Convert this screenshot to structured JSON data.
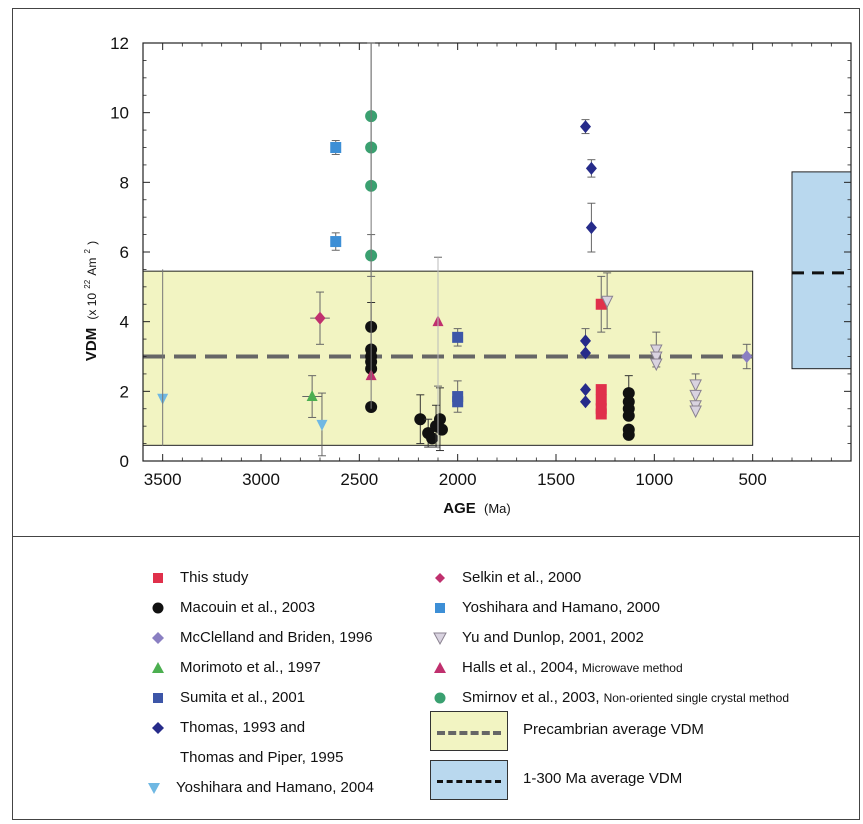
{
  "chart_data": {
    "type": "scatter",
    "xlabel": "AGE",
    "xlabel_unit": "(Ma)",
    "ylabel": "VDM",
    "ylabel_unit": "(x 10",
    "ylabel_exp": "22",
    "ylabel_unit_end": " Am",
    "ylabel_unit_sq": "2",
    "ylabel_close": ")",
    "xlim": [
      3600,
      0
    ],
    "ylim": [
      0,
      12
    ],
    "x_reversed": true,
    "xticks": [
      3500,
      3000,
      2500,
      2000,
      1500,
      1000,
      500
    ],
    "yticks": [
      0,
      2,
      4,
      6,
      8,
      10,
      12
    ],
    "grid": false,
    "reference_bands": [
      {
        "name": "Precambrian average VDM",
        "x_range": [
          3600,
          500
        ],
        "y_range": [
          0.45,
          5.45
        ],
        "mean": 3.0,
        "fill": "#f2f4c2",
        "line_color": "#666666"
      },
      {
        "name": "1-300 Ma average VDM",
        "x_range": [
          300,
          0
        ],
        "y_range": [
          2.65,
          8.3
        ],
        "mean": 5.4,
        "fill": "#b9d8ee",
        "line_color": "#111111"
      }
    ],
    "series": [
      {
        "name": "This study",
        "marker": "square",
        "color": "#e0304b",
        "points": [
          {
            "x": 1270,
            "y": 4.5,
            "yerr": 0.8
          },
          {
            "x": 1270,
            "y": 2.05
          },
          {
            "x": 1270,
            "y": 1.75
          },
          {
            "x": 1270,
            "y": 1.5
          },
          {
            "x": 1270,
            "y": 1.35
          }
        ]
      },
      {
        "name": "Macouin et al., 2003",
        "marker": "circle",
        "color": "#111111",
        "points": [
          {
            "x": 2440,
            "y": 3.85,
            "yerr": 0.7
          },
          {
            "x": 2440,
            "y": 3.2
          },
          {
            "x": 2440,
            "y": 3.0
          },
          {
            "x": 2440,
            "y": 2.85
          },
          {
            "x": 2440,
            "y": 2.65
          },
          {
            "x": 2440,
            "y": 1.55
          },
          {
            "x": 2190,
            "y": 1.2,
            "yerr": 0.7
          },
          {
            "x": 2150,
            "y": 0.8,
            "yerr": 0.4
          },
          {
            "x": 2130,
            "y": 0.65
          },
          {
            "x": 2110,
            "y": 1.0,
            "yerr": 0.6
          },
          {
            "x": 2090,
            "y": 1.2,
            "yerr": 0.9
          },
          {
            "x": 2080,
            "y": 0.9
          },
          {
            "x": 1130,
            "y": 1.95,
            "yerr": 0.5
          },
          {
            "x": 1130,
            "y": 1.7
          },
          {
            "x": 1130,
            "y": 1.5
          },
          {
            "x": 1130,
            "y": 1.3
          },
          {
            "x": 1130,
            "y": 0.9
          },
          {
            "x": 1130,
            "y": 0.75
          }
        ]
      },
      {
        "name": "McClelland and Briden, 1996",
        "marker": "diamond",
        "color": "#8a7fc2",
        "points": [
          {
            "x": 530,
            "y": 3.0,
            "yerr": 0.35
          }
        ]
      },
      {
        "name": "Morimoto et al., 1997",
        "marker": "triangle-up",
        "color": "#4caf50",
        "points": [
          {
            "x": 2740,
            "y": 1.85,
            "yerr": 0.6,
            "xerr": 50
          }
        ]
      },
      {
        "name": "Sumita et al., 2001",
        "marker": "square",
        "color": "#3d56a8",
        "points": [
          {
            "x": 2000,
            "y": 3.55,
            "yerr": 0.25
          },
          {
            "x": 2000,
            "y": 1.85,
            "yerr": 0.45
          },
          {
            "x": 2000,
            "y": 1.7
          }
        ]
      },
      {
        "name": "Thomas, 1993 and",
        "name_line2": "Thomas and Piper, 1995",
        "marker": "diamond",
        "color": "#262b8a",
        "points": [
          {
            "x": 1350,
            "y": 9.6,
            "yerr": 0.2
          },
          {
            "x": 1320,
            "y": 8.4,
            "yerr": 0.25
          },
          {
            "x": 1320,
            "y": 6.7,
            "yerr": 0.7
          },
          {
            "x": 1350,
            "y": 3.45,
            "yerr": 0.35
          },
          {
            "x": 1350,
            "y": 3.1
          },
          {
            "x": 1350,
            "y": 2.05
          },
          {
            "x": 1350,
            "y": 1.7
          }
        ]
      },
      {
        "name": "Yoshihara and Hamano, 2004",
        "marker": "triangle-down",
        "color": "#6fb8e3",
        "points": [
          {
            "x": 3500,
            "y": 1.8
          },
          {
            "x": 2690,
            "y": 1.05,
            "yerr": 0.9
          }
        ]
      },
      {
        "name": "Selkin et al., 2000",
        "marker": "diamond",
        "color": "#c0306e",
        "points": [
          {
            "x": 2700,
            "y": 4.1,
            "yerr": 0.75,
            "xerr": 50
          }
        ]
      },
      {
        "name": "Yoshihara and Hamano, 2000",
        "marker": "square",
        "color": "#3d8fd6",
        "points": [
          {
            "x": 2620,
            "y": 9.0,
            "yerr": 0.2
          },
          {
            "x": 2620,
            "y": 6.3,
            "yerr": 0.25
          }
        ]
      },
      {
        "name": "Yu and Dunlop, 2001, 2002",
        "marker": "triangle-down",
        "color": "#a8a0b0",
        "points": [
          {
            "x": 1240,
            "y": 4.6,
            "yerr": 0.8
          },
          {
            "x": 990,
            "y": 3.2,
            "yerr": 0.5
          },
          {
            "x": 990,
            "y": 3.0
          },
          {
            "x": 990,
            "y": 2.8
          },
          {
            "x": 790,
            "y": 2.2,
            "yerr": 0.3
          },
          {
            "x": 790,
            "y": 1.9
          },
          {
            "x": 790,
            "y": 1.6
          },
          {
            "x": 790,
            "y": 1.45
          }
        ]
      },
      {
        "name": "Halls et al., 2004,",
        "note": "Microwave method",
        "marker": "triangle-up",
        "color": "#c0306e",
        "points": [
          {
            "x": 2440,
            "y": 2.45
          },
          {
            "x": 2100,
            "y": 4.0,
            "yerr": 1.85
          }
        ]
      },
      {
        "name": "Smirnov et al., 2003,",
        "note": "Non-oriented single crystal method",
        "marker": "circle",
        "color": "#3aa070",
        "points": [
          {
            "x": 2440,
            "y": 9.9,
            "yerr": 2.1
          },
          {
            "x": 2440,
            "y": 9.0
          },
          {
            "x": 2440,
            "y": 7.9
          },
          {
            "x": 2440,
            "y": 5.9,
            "yerr": 0.6
          }
        ]
      }
    ]
  },
  "legend": {
    "band1_label": "Precambrian average VDM",
    "band2_label": "1-300 Ma average VDM"
  }
}
